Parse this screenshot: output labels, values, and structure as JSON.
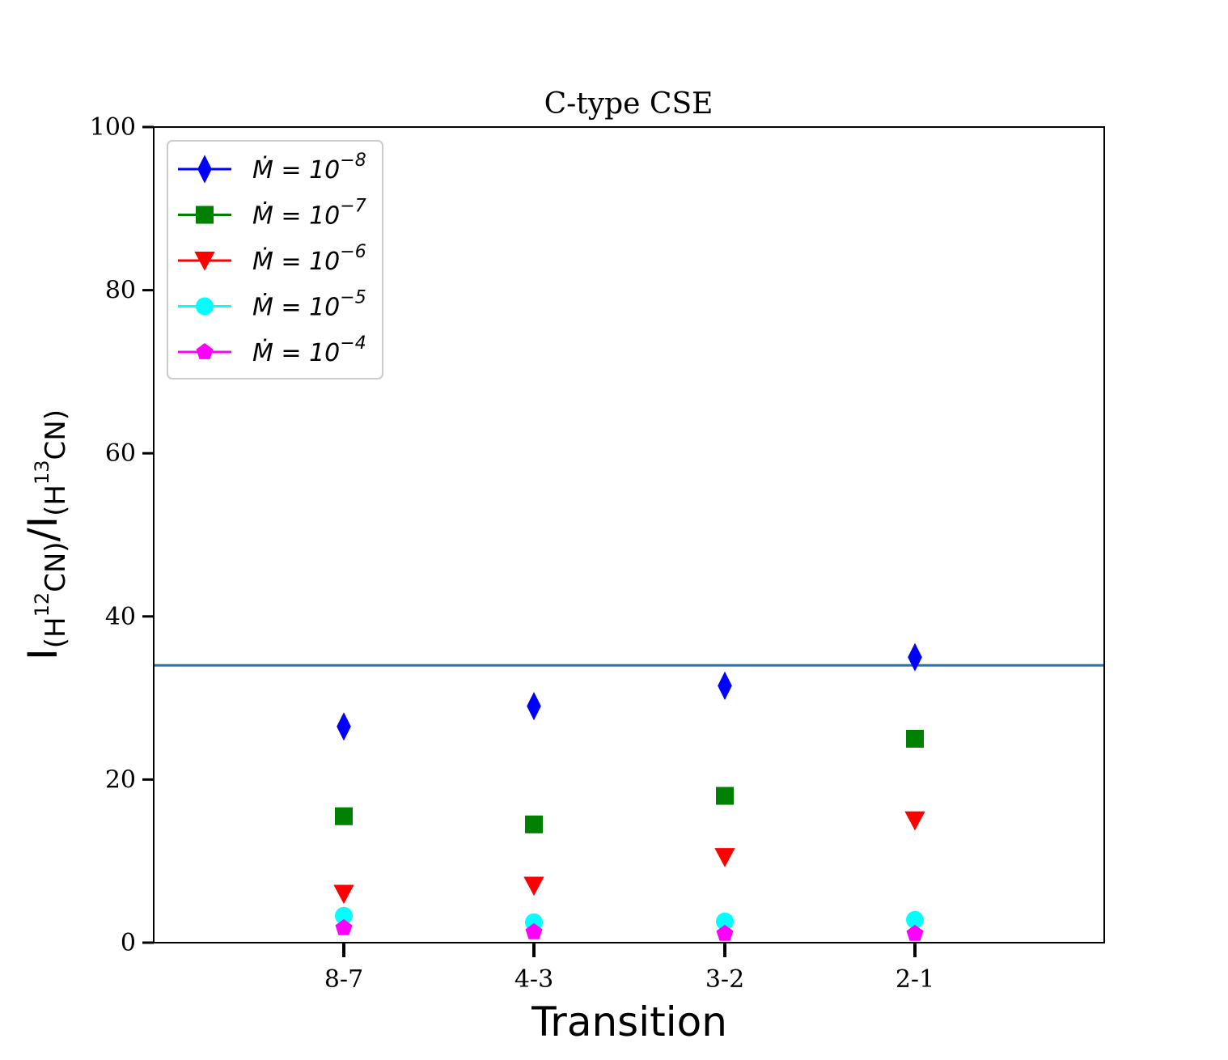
{
  "chart_data": {
    "type": "scatter",
    "title": "C-type CSE",
    "xlabel": "Transition",
    "ylabel": "I(H12CN)/I(H13CN)",
    "ylabel_parts": {
      "i1": "I",
      "sub1a": "(H",
      "sup1": "12",
      "sub1b": "CN)",
      "slash": "/",
      "i2": "I",
      "sub2a": "(H",
      "sup2": "13",
      "sub2b": "CN)"
    },
    "categories": [
      "8-7",
      "4-3",
      "3-2",
      "2-1"
    ],
    "ylim": [
      0,
      100
    ],
    "yticks": [
      0,
      20,
      40,
      60,
      80,
      100
    ],
    "grid": false,
    "legend_position": "upper-left",
    "reference_line": {
      "y": 34,
      "color": "#1f77b4"
    },
    "series": [
      {
        "name": "Ṁ = 10^-8",
        "prefix": "Ṁ = 10",
        "exponent": "−8",
        "marker": "diamond",
        "color": "#0000ff",
        "values": [
          26.5,
          29,
          31.5,
          35
        ]
      },
      {
        "name": "Ṁ = 10^-7",
        "prefix": "Ṁ = 10",
        "exponent": "−7",
        "marker": "square",
        "color": "#008000",
        "values": [
          15.5,
          14.5,
          18,
          25
        ]
      },
      {
        "name": "Ṁ = 10^-6",
        "prefix": "Ṁ = 10",
        "exponent": "−6",
        "marker": "triangle-down",
        "color": "#ff0000",
        "values": [
          6,
          7,
          10.5,
          15
        ]
      },
      {
        "name": "Ṁ = 10^-5",
        "prefix": "Ṁ = 10",
        "exponent": "−5",
        "marker": "circle",
        "color": "#00ffff",
        "values": [
          3.3,
          2.5,
          2.6,
          2.8
        ]
      },
      {
        "name": "Ṁ = 10^-4",
        "prefix": "Ṁ = 10",
        "exponent": "−4",
        "marker": "pentagon",
        "color": "#ff00ff",
        "values": [
          1.8,
          1.3,
          1.1,
          1.1
        ]
      }
    ]
  }
}
